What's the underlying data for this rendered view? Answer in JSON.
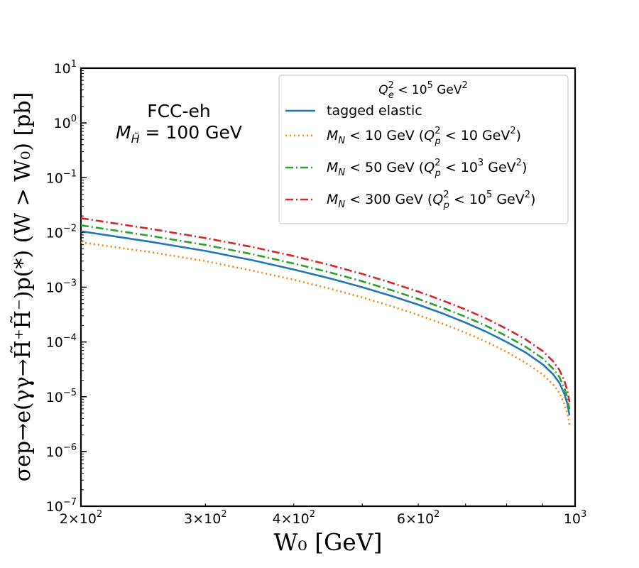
{
  "chart_data": {
    "type": "line",
    "x_scale": "log",
    "y_scale": "log",
    "xlim": [
      200,
      1000
    ],
    "ylim": [
      1e-07,
      10
    ],
    "xlabel": "W₀ [GeV]",
    "ylabel": "σep→e(γγ→H̃⁺H̃⁻)p(*) (W > W₀) [pb]",
    "x_ticks": [
      {
        "value": 200,
        "mantissa": "2",
        "exp": "2"
      },
      {
        "value": 300,
        "mantissa": "3",
        "exp": "2"
      },
      {
        "value": 400,
        "mantissa": "4",
        "exp": "2"
      },
      {
        "value": 600,
        "mantissa": "6",
        "exp": "2"
      },
      {
        "value": 1000,
        "mantissa": "",
        "exp": "3"
      }
    ],
    "y_ticks": [
      {
        "value": 10,
        "exp": "1"
      },
      {
        "value": 1,
        "exp": "0"
      },
      {
        "value": 0.1,
        "exp": "−1"
      },
      {
        "value": 0.01,
        "exp": "−2"
      },
      {
        "value": 0.001,
        "exp": "−3"
      },
      {
        "value": 0.0001,
        "exp": "−4"
      },
      {
        "value": 1e-05,
        "exp": "−5"
      },
      {
        "value": 1e-06,
        "exp": "−6"
      },
      {
        "value": 1e-07,
        "exp": "−7"
      }
    ],
    "annotation": {
      "line1": "FCC-eh",
      "line2_prefix": "M",
      "line2_sub": "H̃",
      "line2_rest": " = 100 GeV"
    },
    "legend": {
      "position": "top-right",
      "title": {
        "prefix": "Q",
        "sub": "e",
        "sup": "2",
        "rest": " <  10",
        "exp": "5",
        "unit": " GeV",
        "unit_exp": "2"
      }
    },
    "series": [
      {
        "name": "tagged elastic",
        "color": "#1f77b4",
        "dash": "solid",
        "x": [
          200,
          250,
          300,
          350,
          400,
          450,
          500,
          550,
          600,
          650,
          700,
          750,
          800,
          850,
          900,
          930,
          950,
          965,
          975,
          982
        ],
        "values": [
          0.0105,
          0.0068,
          0.0046,
          0.0031,
          0.0021,
          0.00145,
          0.001,
          0.00069,
          0.00048,
          0.00033,
          0.000225,
          0.000152,
          0.0001,
          6.5e-05,
          3.9e-05,
          2.6e-05,
          1.8e-05,
          1.15e-05,
          7.5e-06,
          4.6e-06
        ]
      },
      {
        "name": "M_N < 10 GeV (Q_p² < 10 GeV²)",
        "label": {
          "prefix": "M",
          "sub": "N",
          "rest": " <  10 GeV (",
          "q": "Q",
          "qsub": "p",
          "qsup": "2",
          "qrest": " <  10 GeV",
          "qexp": "",
          "unit_exp": "2",
          "close": ")"
        },
        "color": "#ff7f0e",
        "dash": "dotted",
        "x": [
          200,
          250,
          300,
          350,
          400,
          450,
          500,
          550,
          600,
          650,
          700,
          750,
          800,
          850,
          900,
          930,
          950,
          965,
          975,
          982
        ],
        "values": [
          0.0066,
          0.0044,
          0.003,
          0.002,
          0.00137,
          0.00094,
          0.00065,
          0.00045,
          0.00031,
          0.000215,
          0.000147,
          0.0001,
          6.6e-05,
          4.2e-05,
          2.55e-05,
          1.7e-05,
          1.18e-05,
          7.6e-06,
          4.9e-06,
          3.1e-06
        ]
      },
      {
        "name": "M_N < 50 GeV (Q_p² < 10³ GeV²)",
        "label": {
          "prefix": "M",
          "sub": "N",
          "rest": " <  50 GeV (",
          "q": "Q",
          "qsub": "p",
          "qsup": "2",
          "qrest": " <  10",
          "qexp": "3",
          "unit_exp": "2",
          "close": ")"
        },
        "color": "#2ca02c",
        "dash": "dashdot",
        "x": [
          200,
          250,
          300,
          350,
          400,
          450,
          500,
          550,
          600,
          650,
          700,
          750,
          800,
          850,
          900,
          930,
          950,
          965,
          975,
          982
        ],
        "values": [
          0.0135,
          0.0087,
          0.0059,
          0.004,
          0.0027,
          0.00186,
          0.00128,
          0.00088,
          0.00061,
          0.00042,
          0.000288,
          0.000195,
          0.000128,
          8.3e-05,
          5e-05,
          3.3e-05,
          2.3e-05,
          1.47e-05,
          9.6e-06,
          5.9e-06
        ]
      },
      {
        "name": "M_N < 300 GeV (Q_p² < 10⁵ GeV²)",
        "label": {
          "prefix": "M",
          "sub": "N",
          "rest": " <  300 GeV (",
          "q": "Q",
          "qsub": "p",
          "qsup": "2",
          "qrest": " <  10",
          "qexp": "5",
          "unit_exp": "2",
          "close": ")"
        },
        "color": "#d62728",
        "dash": "dashdot",
        "x": [
          200,
          250,
          300,
          350,
          400,
          450,
          500,
          550,
          600,
          650,
          700,
          750,
          800,
          850,
          900,
          930,
          950,
          965,
          975,
          982
        ],
        "values": [
          0.0182,
          0.0117,
          0.0079,
          0.0054,
          0.0037,
          0.00254,
          0.00175,
          0.0012,
          0.00083,
          0.00057,
          0.00039,
          0.000265,
          0.000174,
          0.000113,
          6.8e-05,
          4.5e-05,
          3.1e-05,
          2e-05,
          1.3e-05,
          8e-06
        ]
      }
    ]
  }
}
